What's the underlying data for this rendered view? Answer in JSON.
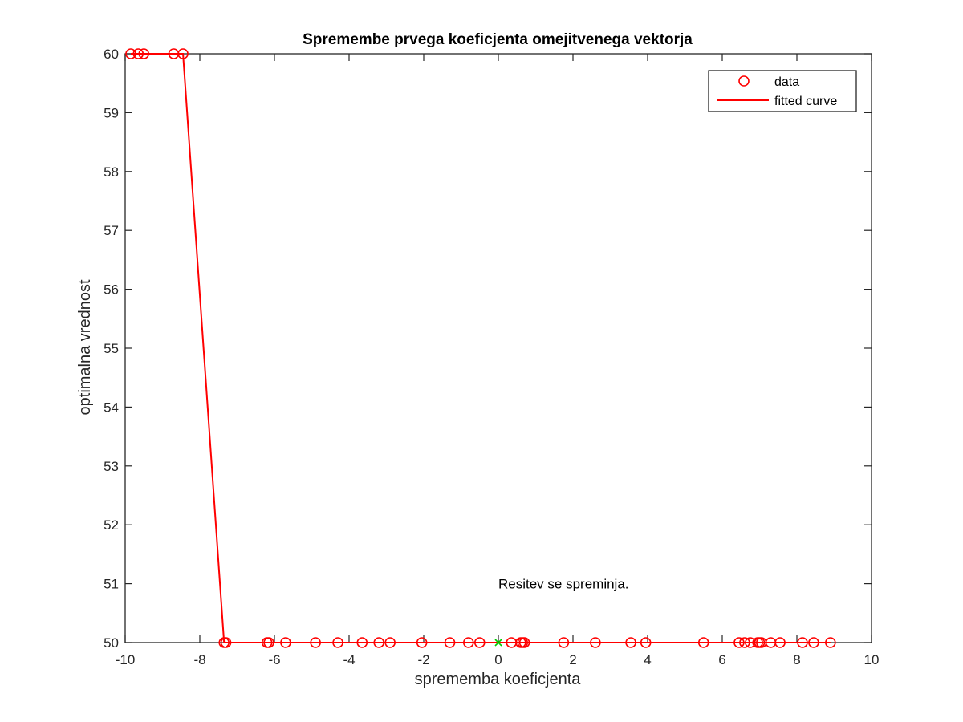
{
  "chart_data": {
    "type": "scatter",
    "title": "Spremembe prvega koeficjenta omejitvenega vektorja",
    "xlabel": "sprememba koeficjenta",
    "ylabel": "optimalna vrednost",
    "xlim": [
      -10,
      10
    ],
    "ylim": [
      50,
      60
    ],
    "xticks": [
      -10,
      -8,
      -6,
      -4,
      -2,
      0,
      2,
      4,
      6,
      8,
      10
    ],
    "yticks": [
      50,
      51,
      52,
      53,
      54,
      55,
      56,
      57,
      58,
      59,
      60
    ],
    "grid": false,
    "legend_position": "top-right",
    "colors": {
      "data": "#ff0000",
      "fit": "#ff0000",
      "marker": "#00cc00",
      "axes": "#262626"
    },
    "series": [
      {
        "name": "data",
        "kind": "markers",
        "x": [
          -9.85,
          -9.65,
          -9.5,
          -8.7,
          -8.45,
          -7.35,
          -7.3,
          -6.2,
          -6.15,
          -5.7,
          -4.9,
          -4.3,
          -3.65,
          -3.2,
          -2.9,
          -2.05,
          -1.3,
          -0.8,
          -0.5,
          0.35,
          0.6,
          0.65,
          0.7,
          1.75,
          2.6,
          3.55,
          3.95,
          5.5,
          6.45,
          6.6,
          6.75,
          6.95,
          7.0,
          7.05,
          7.3,
          7.55,
          8.15,
          8.45,
          8.9
        ],
        "y": [
          60,
          60,
          60,
          60,
          60,
          50,
          50,
          50,
          50,
          50,
          50,
          50,
          50,
          50,
          50,
          50,
          50,
          50,
          50,
          50,
          50,
          50,
          50,
          50,
          50,
          50,
          50,
          50,
          50,
          50,
          50,
          50,
          50,
          50,
          50,
          50,
          50,
          50,
          50
        ]
      },
      {
        "name": "fitted curve",
        "kind": "line",
        "x": [
          -9.85,
          -8.45,
          -7.35,
          8.9
        ],
        "y": [
          60,
          60,
          50,
          50
        ]
      }
    ],
    "current_point": {
      "x": 0,
      "y": 50
    },
    "annotation": {
      "text": "Resitev se spreminja.",
      "x": 0,
      "y": 51
    }
  }
}
